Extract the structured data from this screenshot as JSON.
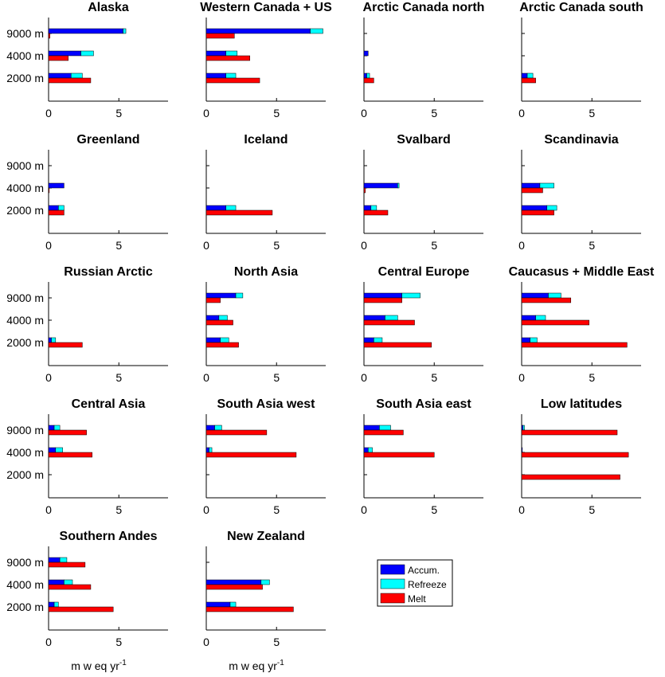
{
  "chart_data": {
    "type": "bar",
    "orientation": "horizontal",
    "categories": [
      "9000 m",
      "4000 m",
      "2000 m"
    ],
    "xlim": [
      0,
      8.5
    ],
    "xticks": [
      0,
      5
    ],
    "xticks_labels": [
      "0",
      "5"
    ],
    "xlabel": "m w eq yr",
    "xlabel_sup": "-1",
    "legend": {
      "placement": "bottom-right",
      "entries": [
        {
          "label": "Accum.",
          "color": "#0000ff"
        },
        {
          "label": "Refreeze",
          "color": "#00ffff"
        },
        {
          "label": "Melt",
          "color": "#ff0000"
        }
      ]
    },
    "panels": [
      {
        "title": "Alaska",
        "accum": [
          5.3,
          2.3,
          1.6
        ],
        "refreeze": [
          0.2,
          0.9,
          0.8
        ],
        "melt": [
          0.1,
          1.4,
          3.0
        ]
      },
      {
        "title": "Western Canada + US",
        "accum": [
          7.4,
          1.4,
          1.4
        ],
        "refreeze": [
          0.9,
          0.8,
          0.7
        ],
        "melt": [
          2.0,
          3.1,
          3.8
        ]
      },
      {
        "title": "Arctic Canada north",
        "accum": [
          0,
          0.3,
          0.2
        ],
        "refreeze": [
          0,
          0,
          0.2
        ],
        "melt": [
          0,
          0,
          0.7
        ]
      },
      {
        "title": "Arctic Canada south",
        "accum": [
          0,
          0,
          0.4
        ],
        "refreeze": [
          0,
          0,
          0.4
        ],
        "melt": [
          0,
          0,
          1.0
        ]
      },
      {
        "title": "Greenland",
        "accum": [
          0,
          1.1,
          0.7
        ],
        "refreeze": [
          0,
          0,
          0.4
        ],
        "melt": [
          0,
          0.05,
          1.1
        ]
      },
      {
        "title": "Iceland",
        "accum": [
          0,
          0,
          1.4
        ],
        "refreeze": [
          0,
          0,
          0.7
        ],
        "melt": [
          0,
          0,
          4.7
        ]
      },
      {
        "title": "Svalbard",
        "accum": [
          0,
          2.4,
          0.5
        ],
        "refreeze": [
          0,
          0.1,
          0.4
        ],
        "melt": [
          0,
          0.1,
          1.7
        ]
      },
      {
        "title": "Scandinavia",
        "accum": [
          0,
          1.3,
          1.8
        ],
        "refreeze": [
          0,
          1.0,
          0.7
        ],
        "melt": [
          0,
          1.5,
          2.3
        ]
      },
      {
        "title": "Russian Arctic",
        "accum": [
          0,
          0,
          0.2
        ],
        "refreeze": [
          0,
          0,
          0.3
        ],
        "melt": [
          0,
          0,
          2.4
        ]
      },
      {
        "title": "North Asia",
        "accum": [
          2.1,
          0.9,
          1.0
        ],
        "refreeze": [
          0.5,
          0.6,
          0.6
        ],
        "melt": [
          1.0,
          1.9,
          2.3
        ]
      },
      {
        "title": "Central Europe",
        "accum": [
          2.7,
          1.5,
          0.7
        ],
        "refreeze": [
          1.3,
          0.9,
          0.6
        ],
        "melt": [
          2.7,
          3.6,
          4.8
        ]
      },
      {
        "title": "Caucasus + Middle East",
        "accum": [
          1.9,
          1.0,
          0.6
        ],
        "refreeze": [
          0.9,
          0.7,
          0.5
        ],
        "melt": [
          3.5,
          4.8,
          7.5
        ]
      },
      {
        "title": "Central Asia",
        "accum": [
          0.4,
          0.5,
          0
        ],
        "refreeze": [
          0.4,
          0.5,
          0
        ],
        "melt": [
          2.7,
          3.1,
          0
        ]
      },
      {
        "title": "South Asia west",
        "accum": [
          0.6,
          0.2,
          0
        ],
        "refreeze": [
          0.5,
          0.2,
          0
        ],
        "melt": [
          4.3,
          6.4,
          0
        ]
      },
      {
        "title": "South Asia east",
        "accum": [
          1.1,
          0.3,
          0
        ],
        "refreeze": [
          0.8,
          0.3,
          0
        ],
        "melt": [
          2.8,
          5.0,
          0
        ]
      },
      {
        "title": "Low latitudes",
        "accum": [
          0.1,
          0.05,
          0
        ],
        "refreeze": [
          0.1,
          0,
          0
        ],
        "melt": [
          6.8,
          7.6,
          7.0
        ]
      },
      {
        "title": "Southern Andes",
        "accum": [
          0.8,
          1.1,
          0.4
        ],
        "refreeze": [
          0.5,
          0.6,
          0.3
        ],
        "melt": [
          2.6,
          3.0,
          4.6
        ]
      },
      {
        "title": "New Zealand",
        "accum": [
          0,
          3.9,
          1.7
        ],
        "refreeze": [
          0,
          0.6,
          0.4
        ],
        "melt": [
          0,
          4.0,
          6.2
        ]
      }
    ]
  }
}
